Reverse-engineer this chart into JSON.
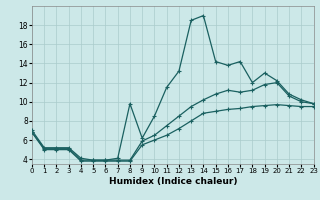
{
  "xlabel": "Humidex (Indice chaleur)",
  "bg_color": "#cce8e8",
  "line_color": "#1a6060",
  "grid_color": "#aacccc",
  "curve1_x": [
    0,
    1,
    2,
    3,
    4,
    5,
    6,
    7,
    8,
    9,
    10,
    11,
    12,
    13,
    14,
    15,
    16,
    17,
    18,
    19,
    20,
    21,
    22,
    23
  ],
  "curve1_y": [
    7.0,
    5.2,
    5.2,
    5.2,
    4.1,
    3.9,
    3.9,
    4.1,
    9.8,
    6.2,
    8.5,
    11.5,
    13.2,
    18.5,
    19.0,
    14.2,
    13.8,
    14.2,
    12.0,
    13.0,
    12.2,
    10.8,
    10.2,
    9.8
  ],
  "curve2_x": [
    0,
    1,
    2,
    3,
    4,
    5,
    6,
    7,
    8,
    9,
    10,
    11,
    12,
    13,
    14,
    15,
    16,
    17,
    18,
    19,
    20,
    21,
    22,
    23
  ],
  "curve2_y": [
    6.8,
    5.1,
    5.1,
    5.1,
    3.9,
    3.9,
    3.9,
    3.9,
    3.9,
    5.9,
    6.5,
    7.5,
    8.5,
    9.5,
    10.2,
    10.8,
    11.2,
    11.0,
    11.2,
    11.8,
    12.0,
    10.6,
    10.0,
    9.8
  ],
  "curve3_x": [
    0,
    1,
    2,
    3,
    4,
    5,
    6,
    7,
    8,
    9,
    10,
    11,
    12,
    13,
    14,
    15,
    16,
    17,
    18,
    19,
    20,
    21,
    22,
    23
  ],
  "curve3_y": [
    6.8,
    5.0,
    5.0,
    5.0,
    3.8,
    3.8,
    3.8,
    3.8,
    3.8,
    5.5,
    6.0,
    6.5,
    7.2,
    8.0,
    8.8,
    9.0,
    9.2,
    9.3,
    9.5,
    9.6,
    9.7,
    9.6,
    9.5,
    9.5
  ],
  "x_min": 0,
  "x_max": 23,
  "y_min": 3.5,
  "y_max": 20,
  "yticks": [
    4,
    6,
    8,
    10,
    12,
    14,
    16,
    18
  ],
  "xticks": [
    0,
    1,
    2,
    3,
    4,
    5,
    6,
    7,
    8,
    9,
    10,
    11,
    12,
    13,
    14,
    15,
    16,
    17,
    18,
    19,
    20,
    21,
    22,
    23
  ],
  "xlabel_fontsize": 6.5,
  "tick_fontsize": 5.0,
  "linewidth": 0.9,
  "markersize": 3.0
}
